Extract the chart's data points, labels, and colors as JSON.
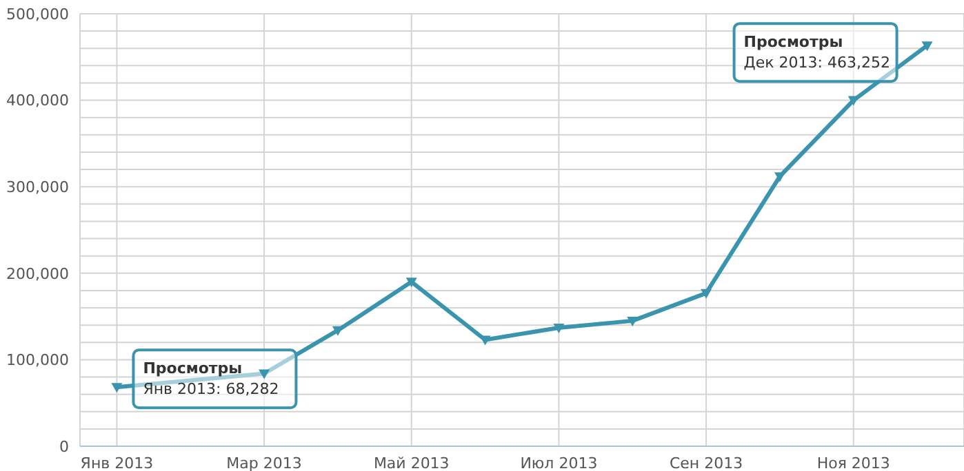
{
  "chart_data": {
    "type": "line",
    "categories": [
      "Янв 2013",
      null,
      "Мар 2013",
      null,
      "Май 2013",
      null,
      "Июл 2013",
      null,
      "Сен 2013",
      null,
      "Ноя 2013",
      null
    ],
    "series": [
      {
        "name": "Просмотры",
        "color": "#3a94ad",
        "values": [
          68282,
          null,
          84000,
          134000,
          190000,
          123000,
          137000,
          145000,
          177000,
          312000,
          400000,
          463252
        ]
      }
    ],
    "ylim": [
      0,
      500000
    ],
    "yticks": [
      0,
      {
        "value": 20000,
        "label": null
      },
      {
        "value": 40000,
        "label": null
      },
      {
        "value": 60000,
        "label": null
      },
      {
        "value": 80000,
        "label": null
      },
      {
        "value": 100000,
        "label": "100,000"
      },
      {
        "value": 120000,
        "label": null
      },
      {
        "value": 140000,
        "label": null
      },
      {
        "value": 160000,
        "label": null
      },
      {
        "value": 180000,
        "label": null
      },
      {
        "value": 200000,
        "label": "200,000"
      },
      {
        "value": 220000,
        "label": null
      },
      {
        "value": 240000,
        "label": null
      },
      {
        "value": 260000,
        "label": null
      },
      {
        "value": 280000,
        "label": null
      },
      {
        "value": 300000,
        "label": "300,000"
      },
      {
        "value": 320000,
        "label": null
      },
      {
        "value": 340000,
        "label": null
      },
      {
        "value": 360000,
        "label": null
      },
      {
        "value": 380000,
        "label": null
      },
      {
        "value": 400000,
        "label": "400,000"
      },
      {
        "value": 420000,
        "label": null
      },
      {
        "value": 440000,
        "label": null
      },
      {
        "value": 460000,
        "label": null
      },
      {
        "value": 480000,
        "label": null
      },
      {
        "value": 500000,
        "label": "500,000"
      }
    ],
    "annotations": [
      {
        "text": "Янв 2013: 68,282",
        "x": "Янв 2013",
        "y": 68282
      },
      "Дек 2013: 463,252"
    ],
    "grid": true,
    "legend": false,
    "marker": "triangle",
    "line_style": "solid"
  }
}
